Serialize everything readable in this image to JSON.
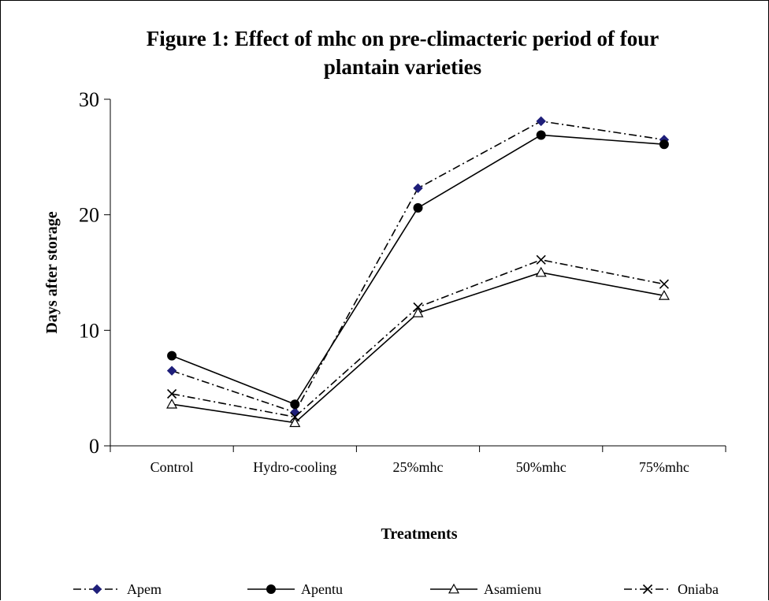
{
  "chart_data": {
    "type": "line",
    "title_line1": "Figure 1:    Effect of mhc on pre-climacteric period of four",
    "title_line2": "plantain varieties",
    "xlabel": "Treatments",
    "ylabel": "Days after storage",
    "categories": [
      "Control",
      "Hydro-cooling",
      "25%mhc",
      "50%mhc",
      "75%mhc"
    ],
    "ylim": [
      0,
      30
    ],
    "yticks": [
      0,
      10,
      20,
      30
    ],
    "grid": false,
    "legend_position": "bottom",
    "series": [
      {
        "name": "Apem",
        "values": [
          6.5,
          2.9,
          22.3,
          28.1,
          26.5
        ],
        "marker": "diamond",
        "dash": "dash-dot",
        "color": "#000000",
        "marker_color": "#1f1f7a"
      },
      {
        "name": "Apentu",
        "values": [
          7.8,
          3.6,
          20.6,
          26.9,
          26.1
        ],
        "marker": "circle",
        "dash": "solid",
        "color": "#000000",
        "marker_color": "#000000"
      },
      {
        "name": "Asamienu",
        "values": [
          3.6,
          2.0,
          11.5,
          15.0,
          13.0
        ],
        "marker": "triangle",
        "dash": "solid",
        "color": "#000000",
        "marker_color": "#000000"
      },
      {
        "name": "Oniaba",
        "values": [
          4.5,
          2.5,
          12.0,
          16.1,
          14.0
        ],
        "marker": "x",
        "dash": "dash-dot",
        "color": "#000000",
        "marker_color": "#000000"
      }
    ]
  }
}
